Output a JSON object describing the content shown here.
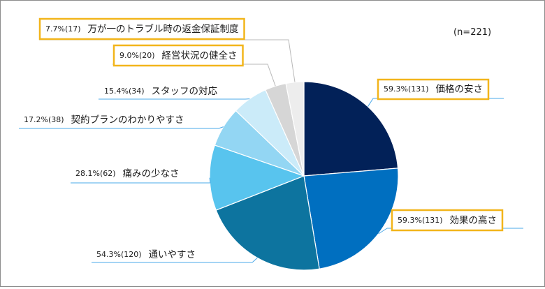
{
  "chart_data": {
    "type": "pie",
    "n_label": "(n=221)",
    "slices": [
      {
        "pct": "59.3%",
        "count": "(131)",
        "name": "価格の安さ",
        "value": 131,
        "color": "#022158",
        "highlight": true
      },
      {
        "pct": "59.3%",
        "count": "(131)",
        "name": "効果の高さ",
        "value": 131,
        "color": "#006fc0",
        "highlight": true
      },
      {
        "pct": "54.3%",
        "count": "(120)",
        "name": "通いやすさ",
        "value": 120,
        "color": "#0d749f",
        "highlight": false
      },
      {
        "pct": "28.1%",
        "count": "(62)",
        "name": "痛みの少なさ",
        "value": 62,
        "color": "#58c4ee",
        "highlight": false
      },
      {
        "pct": "17.2%",
        "count": "(38)",
        "name": "契約プランのわかりやすさ",
        "value": 38,
        "color": "#93d6f3",
        "highlight": false
      },
      {
        "pct": "15.4%",
        "count": "(34)",
        "name": "スタッフの対応",
        "value": 34,
        "color": "#cbebf9",
        "highlight": false
      },
      {
        "pct": "9.0%",
        "count": "(20)",
        "name": "経営状況の健全さ",
        "value": 20,
        "color": "#d6d6d6",
        "highlight": true
      },
      {
        "pct": "7.7%",
        "count": "(17)",
        "name": "万が一のトラブル時の返金保証制度",
        "value": 17,
        "color": "#ededed",
        "highlight": true
      }
    ]
  }
}
